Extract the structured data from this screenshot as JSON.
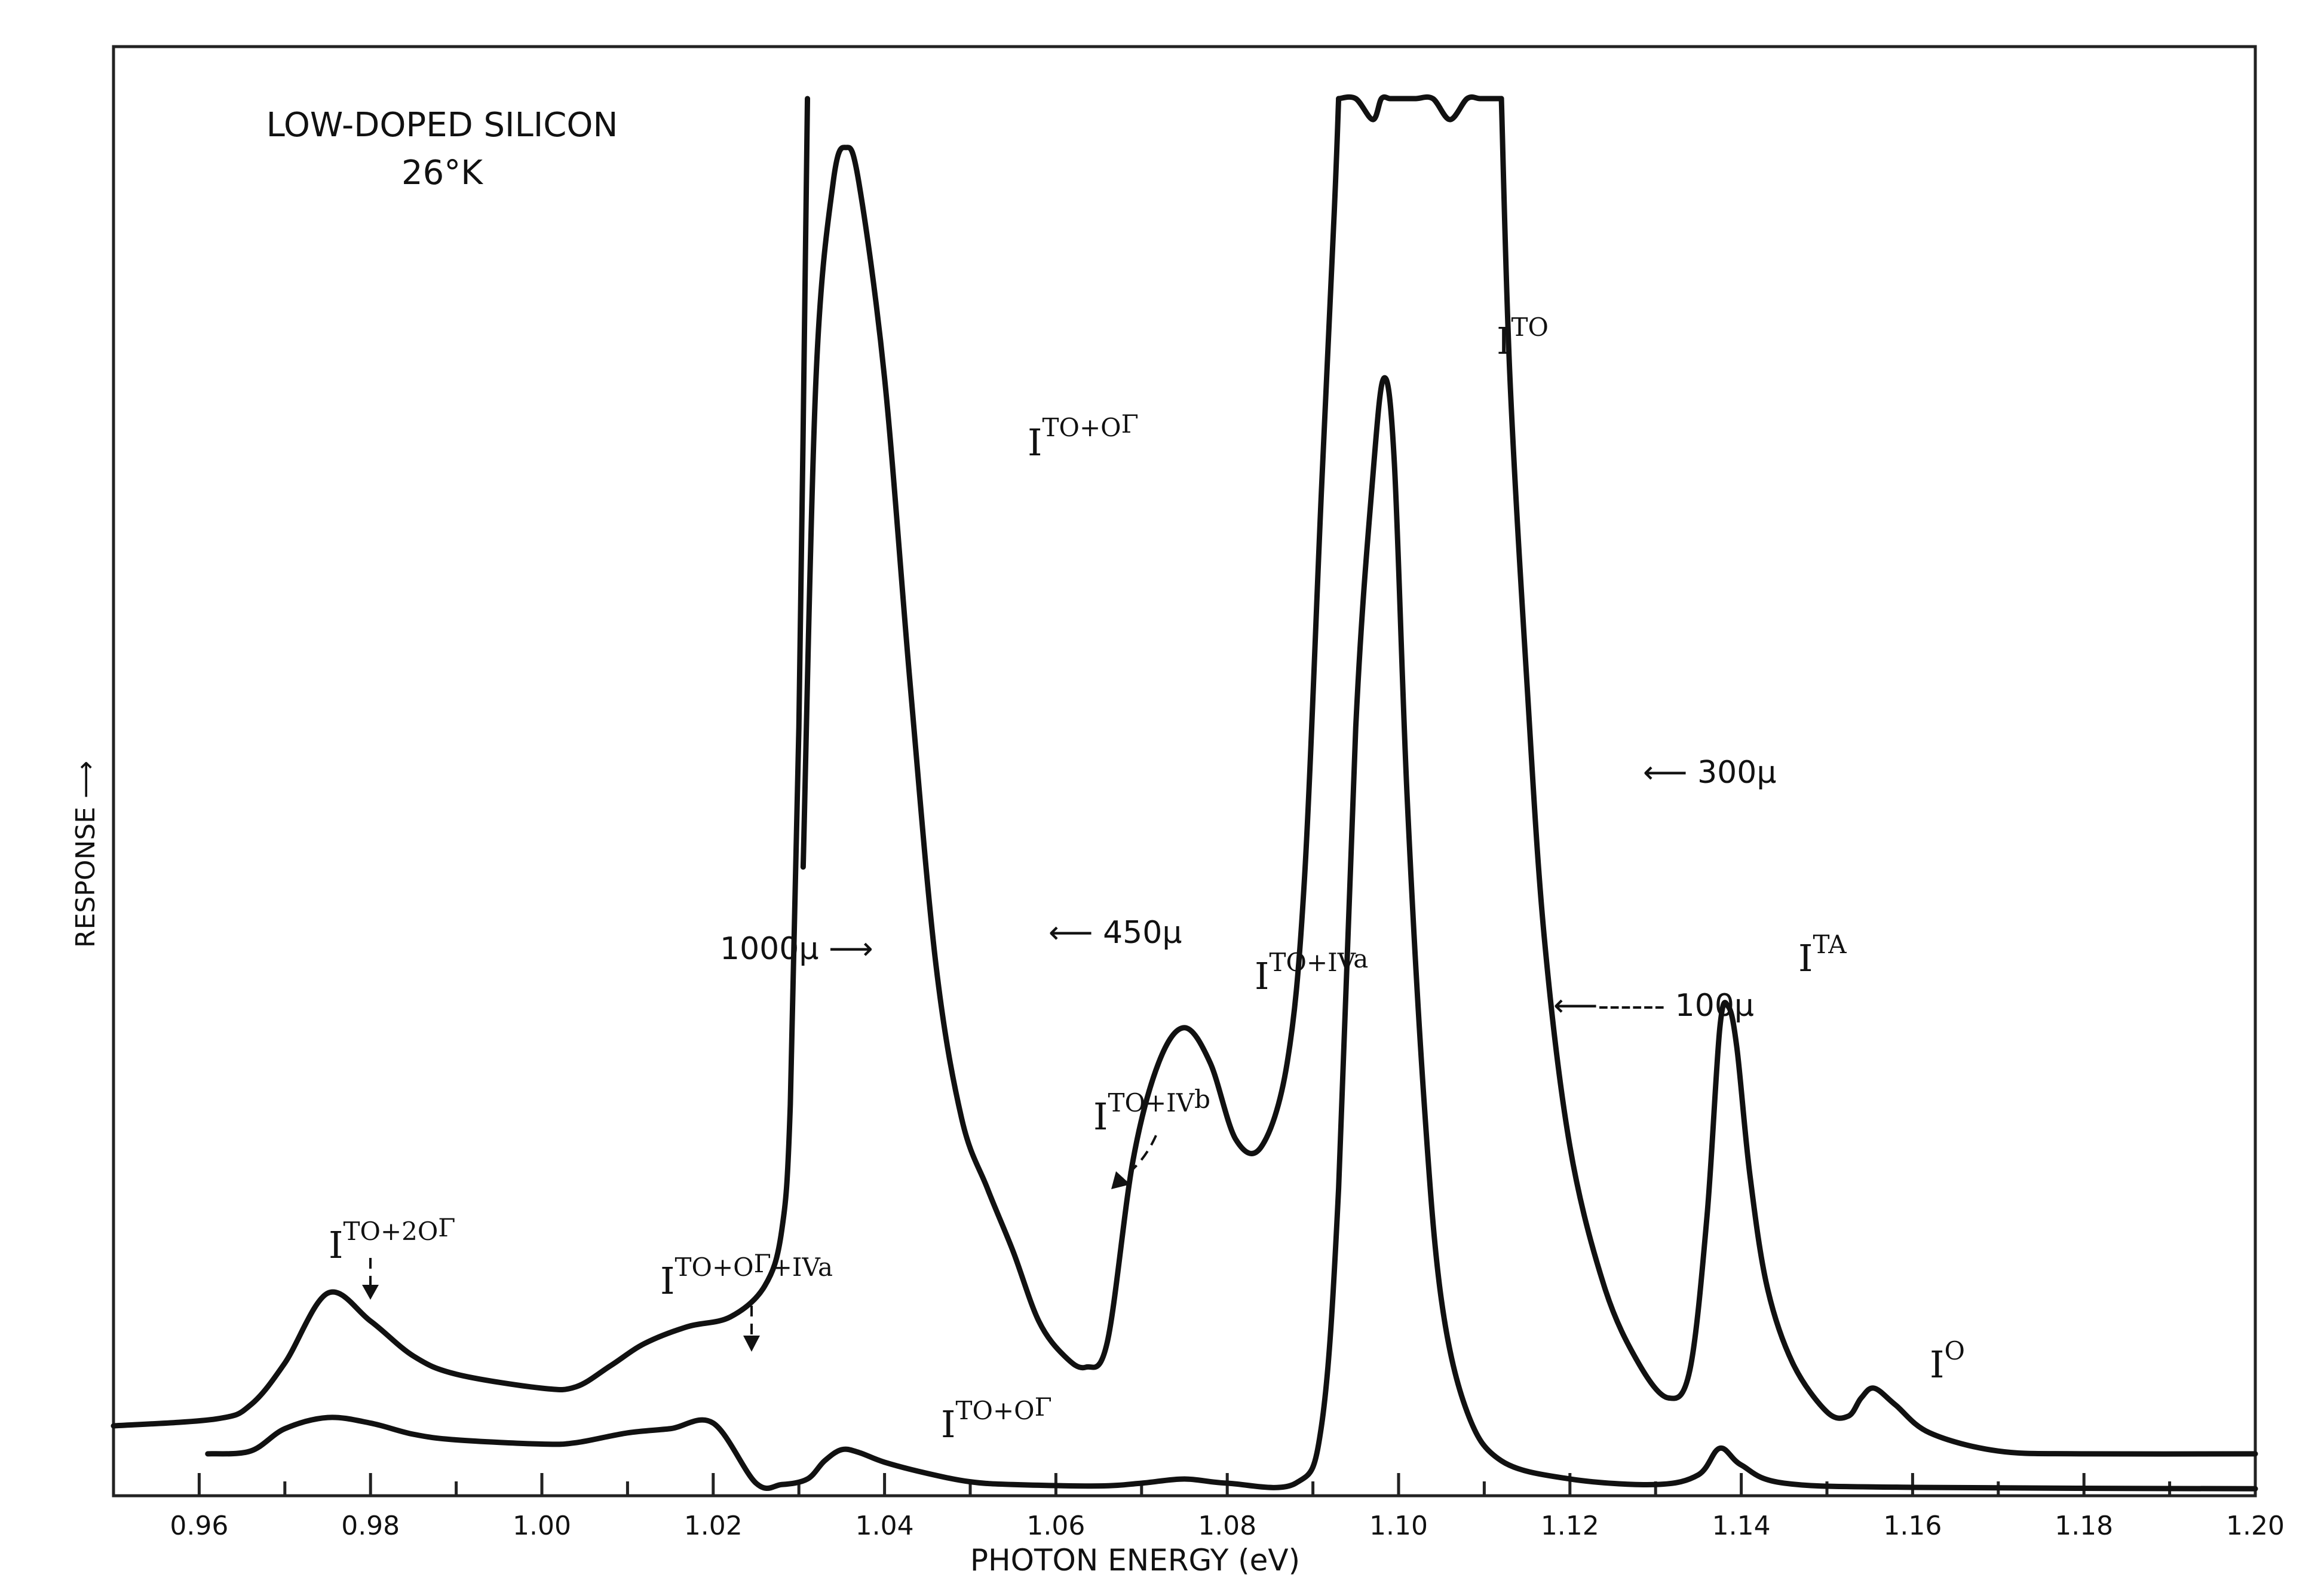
{
  "chart_data": {
    "type": "line",
    "title": "LOW-DOPED SILICON",
    "subtitle": "26°K",
    "xlabel": "PHOTON ENERGY (eV)",
    "ylabel": "RESPONSE",
    "ylabel_arrow": "⟶",
    "xlim": [
      0.95,
      1.2
    ],
    "ylim": [
      0,
      100
    ],
    "grid": false,
    "x_tick_labels": [
      "0.96",
      "0.98",
      "1.00",
      "1.02",
      "1.04",
      "1.06",
      "1.08",
      "1.10",
      "1.12",
      "1.14",
      "1.16",
      "1.18",
      "1.20"
    ],
    "x_tick_values": [
      0.96,
      0.98,
      1.0,
      1.02,
      1.04,
      1.06,
      1.08,
      1.1,
      1.12,
      1.14,
      1.16,
      1.18,
      1.2
    ],
    "series": [
      {
        "name": "1000μ",
        "x": [
          0.95,
          0.962,
          0.966,
          0.97,
          0.975,
          0.98,
          0.985,
          0.99,
          1.0,
          1.004,
          1.008,
          1.012,
          1.017,
          1.022,
          1.026,
          1.028,
          1.029,
          1.03,
          1.031
        ],
        "y": [
          5,
          5.5,
          6.5,
          9.5,
          14.5,
          12.5,
          10,
          8.7,
          7.7,
          7.8,
          9.3,
          10.9,
          12.1,
          12.8,
          15,
          19,
          28,
          55,
          100
        ]
      },
      {
        "name": "450μ",
        "x": [
          1.0305,
          1.032,
          1.034,
          1.0355,
          1.037,
          1.04,
          1.043,
          1.046,
          1.049,
          1.052,
          1.055,
          1.058,
          1.061,
          1.0635,
          1.066,
          1.069,
          1.072,
          1.075,
          1.078,
          1.081,
          1.084,
          1.087,
          1.089,
          1.091,
          1.0925,
          1.093
        ],
        "y": [
          45,
          80,
          94,
          96.5,
          94,
          80,
          58,
          38,
          27,
          22,
          17.5,
          12.5,
          10,
          9.2,
          11,
          24,
          31,
          33.5,
          31,
          25.5,
          25,
          31,
          44,
          72,
          92,
          100
        ]
      },
      {
        "name": "300μ",
        "x": [
          1.093,
          1.095,
          1.097,
          1.098,
          1.099,
          1.1,
          1.102,
          1.104,
          1.106,
          1.108,
          1.1095,
          1.111,
          1.112
        ],
        "y": [
          100,
          100,
          98.5,
          100,
          100,
          100,
          100,
          100,
          98.5,
          100,
          100,
          100,
          100
        ],
        "note": "flat top with break marks"
      },
      {
        "name": "300μ-tail",
        "x": [
          1.112,
          1.113,
          1.115,
          1.117,
          1.12,
          1.124,
          1.128,
          1.1315,
          1.134,
          1.136,
          1.1375,
          1.1385,
          1.1395,
          1.141,
          1.143,
          1.146,
          1.15,
          1.1525,
          1.154,
          1.1555,
          1.158,
          1.162,
          1.17,
          1.18,
          1.2
        ],
        "y": [
          100,
          80,
          58,
          40,
          25,
          15,
          9.5,
          7,
          9,
          20,
          33.5,
          35,
          32,
          23,
          15,
          9.5,
          6,
          5.7,
          7,
          7.7,
          6.5,
          4.5,
          3.2,
          3,
          3
        ]
      },
      {
        "name": "100μ",
        "x": [
          0.961,
          0.966,
          0.97,
          0.975,
          0.98,
          0.985,
          0.99,
          1.0,
          1.004,
          1.01,
          1.015,
          1.02,
          1.025,
          1.028,
          1.031,
          1.033,
          1.035,
          1.037,
          1.04,
          1.045,
          1.05,
          1.055,
          1.065,
          1.07,
          1.075,
          1.08,
          1.088,
          1.091,
          1.093,
          1.095,
          1.097,
          1.0983,
          1.0995,
          1.101,
          1.103,
          1.105,
          1.108,
          1.112,
          1.12,
          1.13,
          1.135,
          1.1375,
          1.14,
          1.145,
          1.16,
          1.2
        ],
        "y": [
          3,
          3.2,
          4.8,
          5.6,
          5.2,
          4.4,
          4,
          3.7,
          3.8,
          4.5,
          4.8,
          5.2,
          0.9,
          0.8,
          1.2,
          2.5,
          3.3,
          3.1,
          2.4,
          1.6,
          1.0,
          0.8,
          0.7,
          0.9,
          1.2,
          0.9,
          0.9,
          5,
          22,
          55,
          73,
          80,
          74,
          50,
          28,
          14,
          6,
          2.5,
          1.2,
          0.8,
          1.5,
          3.4,
          2.2,
          0.9,
          0.6,
          0.5
        ]
      }
    ],
    "annotations": {
      "i_to_20r": {
        "base": "I",
        "sup": "TO+2O",
        "sup2": "Γ"
      },
      "i_to_or_iva": {
        "base": "I",
        "sup": "TO+O",
        "sup2": "Γ",
        "sup3": "+IV",
        "sup4": "a"
      },
      "i_to_or_top": {
        "base": "I",
        "sup": "TO+O",
        "sup2": "Γ"
      },
      "i_to_or_bottom": {
        "base": "I",
        "sup": "TO+O",
        "sup2": "Γ"
      },
      "i_to_ivb": {
        "base": "I",
        "sup": "TO+IV",
        "sup2": "b"
      },
      "i_to_iva": {
        "base": "I",
        "sup": "TO+IV",
        "sup2": "a"
      },
      "i_to": {
        "base": "I",
        "sup": "TO"
      },
      "i_ta": {
        "base": "I",
        "sup": "TA"
      },
      "i_0": {
        "base": "I",
        "sup": "O"
      },
      "label_1000": "1000μ ⟶",
      "label_450": "⟵ 450μ",
      "label_300": "⟵ 300μ",
      "label_100": "⟵------ 100μ"
    }
  }
}
